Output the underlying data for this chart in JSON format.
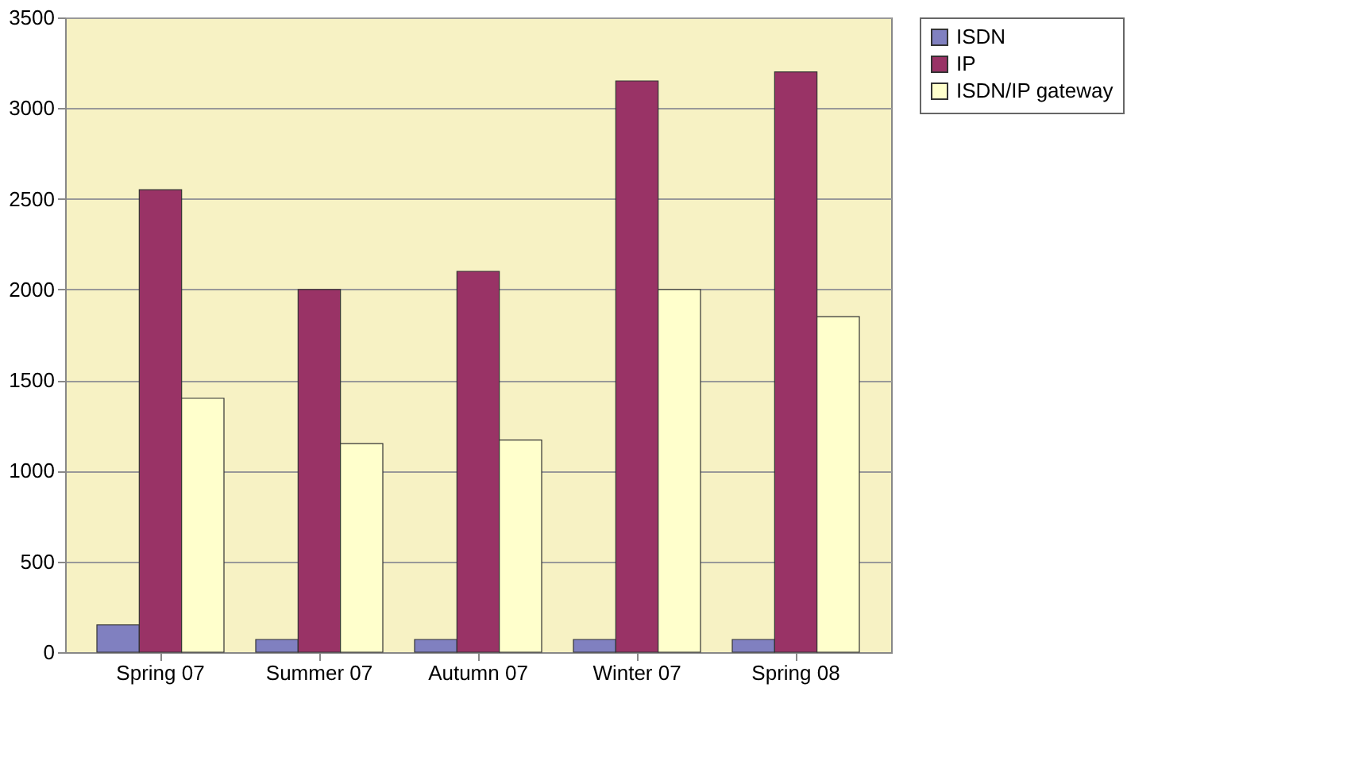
{
  "chart_data": {
    "type": "bar",
    "categories": [
      "Spring 07",
      "Summer 07",
      "Autumn 07",
      "Winter 07",
      "Spring 08"
    ],
    "series": [
      {
        "name": "ISDN",
        "color": "#8080c0",
        "values": [
          150,
          70,
          70,
          70,
          70
        ]
      },
      {
        "name": "IP",
        "color": "#993366",
        "values": [
          2550,
          2000,
          2100,
          3150,
          3200
        ]
      },
      {
        "name": "ISDN/IP gateway",
        "color": "#ffffcc",
        "values": [
          1400,
          1150,
          1170,
          2000,
          1850
        ]
      }
    ],
    "ylim": [
      0,
      3500
    ],
    "yticks": [
      0,
      500,
      1000,
      1500,
      2000,
      2500,
      3000,
      3500
    ],
    "grid": "y",
    "legend": "right"
  }
}
